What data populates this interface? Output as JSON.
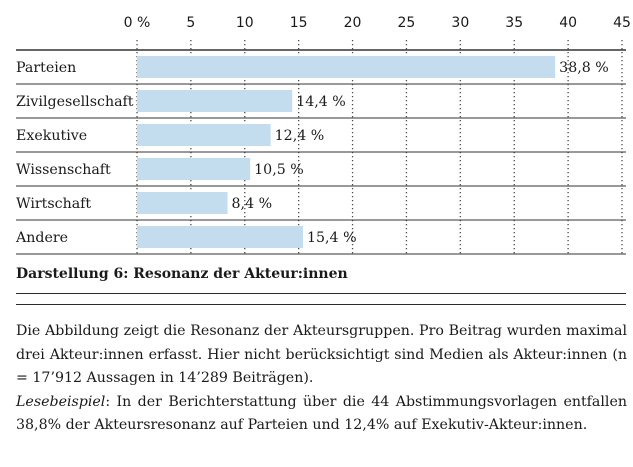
{
  "chart_data": {
    "type": "bar",
    "orientation": "horizontal",
    "categories": [
      "Parteien",
      "Zivilgesellschaft",
      "Exekutive",
      "Wissenschaft",
      "Wirtschaft",
      "Andere"
    ],
    "values": [
      38.8,
      14.4,
      12.4,
      10.5,
      8.4,
      15.4
    ],
    "value_labels": [
      "38,8 %",
      "14,4 %",
      "12,4 %",
      "10,5 %",
      "8,4 %",
      "15,4 %"
    ],
    "x_ticks": [
      0,
      5,
      10,
      15,
      20,
      25,
      30,
      35,
      40,
      45
    ],
    "x_tick_labels": [
      "0 %",
      "5",
      "10",
      "15",
      "20",
      "25",
      "30",
      "35",
      "40",
      "45"
    ],
    "xlim": [
      0,
      45
    ],
    "tick_position": "top",
    "grid": "dotted vertical and solid horizontal",
    "bar_color": "#c3dcee"
  },
  "caption": "Darstellung 6: Resonanz der Akteur:innen",
  "description": "Die Abbildung zeigt die Resonanz der Akteursgruppen. Pro Beitrag wurden maximal drei Akteur:innen erfasst. Hier nicht berücksichtigt sind Medien als Akteur:innen (n = 17’912 Aussagen in 14’289 Beiträgen).",
  "example_label": "Lesebeispiel",
  "example_text": ": In der Berichterstattung über die 44 Abstimmungsvorlagen entfallen 38,8% der Akteursresonanz auf Parteien und 12,4% auf Exekutiv-Akteur:innen."
}
